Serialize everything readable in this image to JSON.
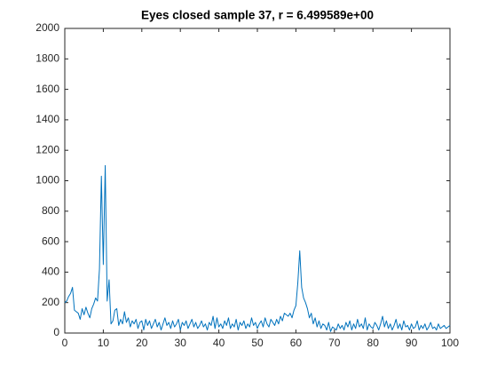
{
  "chart_data": {
    "type": "line",
    "title": "Eyes closed sample 37, r = 6.499589e+00",
    "xlim": [
      0,
      100
    ],
    "xticks": [
      0,
      10,
      20,
      30,
      40,
      50,
      60,
      70,
      80,
      90,
      100
    ],
    "ylim": [
      0,
      2000
    ],
    "yticks": [
      0,
      200,
      400,
      600,
      800,
      1000,
      1200,
      1400,
      1600,
      1800,
      2000
    ],
    "grid": false,
    "x": [
      0,
      0.5,
      1,
      1.5,
      2,
      2.5,
      3,
      3.5,
      4,
      4.5,
      5,
      5.5,
      6,
      6.5,
      7,
      7.5,
      8,
      8.5,
      9,
      9.5,
      10,
      10.5,
      11,
      11.5,
      12,
      12.5,
      13,
      13.5,
      14,
      14.5,
      15,
      15.5,
      16,
      16.5,
      17,
      17.5,
      18,
      18.5,
      19,
      19.5,
      20,
      20.5,
      21,
      21.5,
      22,
      22.5,
      23,
      23.5,
      24,
      24.5,
      25,
      25.5,
      26,
      26.5,
      27,
      27.5,
      28,
      28.5,
      29,
      29.5,
      30,
      30.5,
      31,
      31.5,
      32,
      32.5,
      33,
      33.5,
      34,
      34.5,
      35,
      35.5,
      36,
      36.5,
      37,
      37.5,
      38,
      38.5,
      39,
      39.5,
      40,
      40.5,
      41,
      41.5,
      42,
      42.5,
      43,
      43.5,
      44,
      44.5,
      45,
      45.5,
      46,
      46.5,
      47,
      47.5,
      48,
      48.5,
      49,
      49.5,
      50,
      50.5,
      51,
      51.5,
      52,
      52.5,
      53,
      53.5,
      54,
      54.5,
      55,
      55.5,
      56,
      56.5,
      57,
      57.5,
      58,
      58.5,
      59,
      59.5,
      60,
      60.5,
      61,
      61.5,
      62,
      62.5,
      63,
      63.5,
      64,
      64.5,
      65,
      65.5,
      66,
      66.5,
      67,
      67.5,
      68,
      68.5,
      69,
      69.5,
      70,
      70.5,
      71,
      71.5,
      72,
      72.5,
      73,
      73.5,
      74,
      74.5,
      75,
      75.5,
      76,
      76.5,
      77,
      77.5,
      78,
      78.5,
      79,
      79.5,
      80,
      80.5,
      81,
      81.5,
      82,
      82.5,
      83,
      83.5,
      84,
      84.5,
      85,
      85.5,
      86,
      86.5,
      87,
      87.5,
      88,
      88.5,
      89,
      89.5,
      90,
      90.5,
      91,
      91.5,
      92,
      92.5,
      93,
      93.5,
      94,
      94.5,
      95,
      95.5,
      96,
      96.5,
      97,
      97.5,
      98,
      98.5,
      99,
      99.5,
      100
    ],
    "series": [
      {
        "color": "#0072bd",
        "values": [
          200,
          210,
          240,
          260,
          300,
          150,
          140,
          130,
          90,
          160,
          120,
          170,
          130,
          100,
          160,
          190,
          230,
          210,
          420,
          1030,
          450,
          1100,
          210,
          350,
          60,
          80,
          150,
          160,
          50,
          90,
          60,
          140,
          70,
          100,
          40,
          80,
          60,
          90,
          30,
          70,
          80,
          20,
          90,
          50,
          80,
          30,
          60,
          90,
          40,
          70,
          20,
          60,
          100,
          50,
          70,
          30,
          80,
          40,
          60,
          90,
          20,
          70,
          50,
          80,
          30,
          60,
          90,
          40,
          70,
          30,
          50,
          80,
          40,
          60,
          20,
          70,
          50,
          110,
          30,
          100,
          40,
          60,
          30,
          80,
          50,
          100,
          30,
          60,
          40,
          90,
          20,
          70,
          50,
          80,
          30,
          60,
          40,
          100,
          50,
          70,
          30,
          60,
          80,
          40,
          100,
          60,
          40,
          90,
          70,
          50,
          90,
          60,
          110,
          80,
          130,
          120,
          110,
          130,
          100,
          150,
          180,
          330,
          540,
          300,
          230,
          200,
          160,
          100,
          130,
          60,
          100,
          40,
          80,
          30,
          60,
          50,
          20,
          70,
          10,
          40,
          30,
          20,
          60,
          30,
          50,
          20,
          70,
          40,
          80,
          20,
          60,
          30,
          90,
          40,
          60,
          30,
          100,
          20,
          60,
          40,
          30,
          70,
          50,
          20,
          60,
          110,
          40,
          80,
          30,
          60,
          20,
          50,
          90,
          30,
          60,
          20,
          80,
          40,
          50,
          20,
          60,
          30,
          40,
          80,
          20,
          50,
          30,
          60,
          20,
          40,
          70,
          30,
          40,
          20,
          60,
          30,
          40,
          50,
          30,
          40,
          50
        ]
      }
    ]
  }
}
